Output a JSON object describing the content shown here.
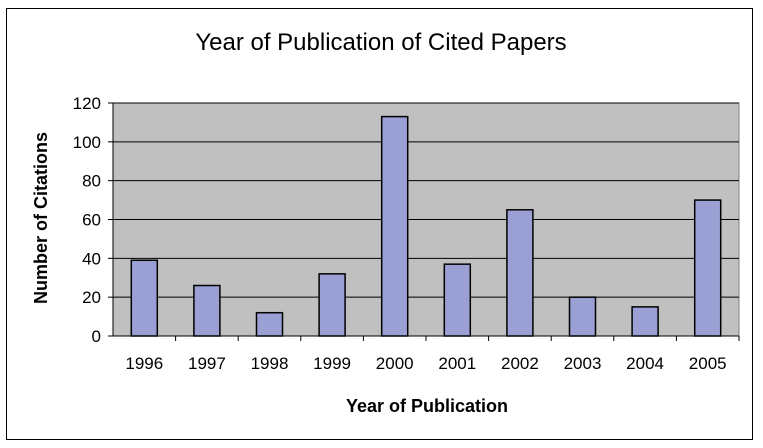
{
  "chart_data": {
    "type": "bar",
    "title": "Year of Publication of Cited Papers",
    "xlabel": "Year of Publication",
    "ylabel": "Number of Citations",
    "categories": [
      "1996",
      "1997",
      "1998",
      "1999",
      "2000",
      "2001",
      "2002",
      "2003",
      "2004",
      "2005"
    ],
    "values": [
      39,
      26,
      12,
      32,
      113,
      37,
      65,
      20,
      15,
      70
    ],
    "ylim": [
      0,
      120
    ],
    "yticks": [
      0,
      20,
      40,
      60,
      80,
      100,
      120
    ],
    "grid": true,
    "legend": "none",
    "colors": {
      "bar": "#9aa0d4",
      "plot_background": "#c0c0c0",
      "gridline": "#000000"
    }
  }
}
